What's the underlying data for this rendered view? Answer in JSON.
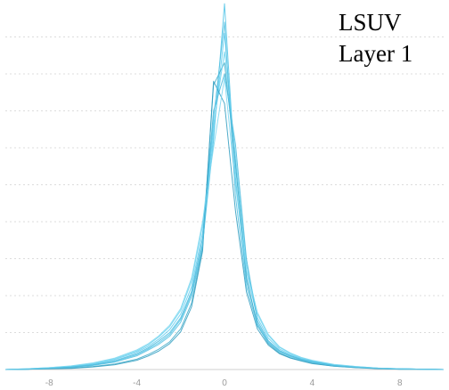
{
  "chart_data": {
    "type": "line",
    "title": "",
    "xlabel": "",
    "ylabel": "",
    "annotation_lines": [
      "LSUV",
      "Layer 1"
    ],
    "xlim": [
      -10,
      10
    ],
    "ylim": [
      0,
      1.0
    ],
    "x_ticks": [
      -8,
      -4,
      0,
      4,
      8
    ],
    "x_tick_labels": [
      "-8",
      "-4",
      "0",
      "4",
      "8"
    ],
    "y_gridlines": [
      0.1,
      0.2,
      0.3,
      0.4,
      0.5,
      0.6,
      0.7,
      0.8,
      0.9
    ],
    "grid": true,
    "legend": "none",
    "colors": [
      "#4fc3e6",
      "#5fcdf0",
      "#3faac8",
      "#6bd2ee",
      "#48b8dc",
      "#2f9cbf",
      "#7ad6f0",
      "#55c0e0"
    ],
    "x": [
      -10,
      -9,
      -8,
      -7,
      -6,
      -5,
      -4,
      -3.5,
      -3,
      -2.5,
      -2,
      -1.5,
      -1,
      -0.5,
      0,
      0.5,
      1,
      1.5,
      2,
      2.5,
      3,
      3.5,
      4,
      5,
      6,
      7,
      8,
      9,
      10
    ],
    "series": [
      {
        "values": [
          0.0,
          0.001,
          0.003,
          0.006,
          0.012,
          0.022,
          0.04,
          0.055,
          0.072,
          0.095,
          0.135,
          0.205,
          0.34,
          0.62,
          0.99,
          0.52,
          0.24,
          0.125,
          0.075,
          0.05,
          0.037,
          0.027,
          0.02,
          0.011,
          0.006,
          0.003,
          0.002,
          0.001,
          0.0
        ]
      },
      {
        "values": [
          0.0,
          0.001,
          0.004,
          0.008,
          0.015,
          0.027,
          0.047,
          0.062,
          0.082,
          0.108,
          0.15,
          0.225,
          0.37,
          0.64,
          0.91,
          0.55,
          0.265,
          0.14,
          0.085,
          0.056,
          0.041,
          0.03,
          0.022,
          0.012,
          0.007,
          0.004,
          0.002,
          0.001,
          0.0
        ]
      },
      {
        "values": [
          0.0,
          0.001,
          0.002,
          0.004,
          0.008,
          0.015,
          0.028,
          0.04,
          0.055,
          0.075,
          0.11,
          0.18,
          0.33,
          0.77,
          0.83,
          0.56,
          0.25,
          0.12,
          0.07,
          0.045,
          0.032,
          0.024,
          0.017,
          0.009,
          0.005,
          0.003,
          0.001,
          0.001,
          0.0
        ]
      },
      {
        "values": [
          0.0,
          0.002,
          0.005,
          0.009,
          0.016,
          0.029,
          0.05,
          0.066,
          0.088,
          0.116,
          0.16,
          0.24,
          0.39,
          0.66,
          0.86,
          0.58,
          0.285,
          0.15,
          0.092,
          0.06,
          0.044,
          0.032,
          0.024,
          0.013,
          0.008,
          0.004,
          0.002,
          0.001,
          0.0
        ]
      },
      {
        "values": [
          0.0,
          0.001,
          0.003,
          0.007,
          0.013,
          0.024,
          0.043,
          0.058,
          0.077,
          0.1,
          0.14,
          0.212,
          0.355,
          0.7,
          0.8,
          0.61,
          0.3,
          0.132,
          0.078,
          0.052,
          0.038,
          0.028,
          0.021,
          0.011,
          0.006,
          0.003,
          0.002,
          0.001,
          0.0
        ]
      },
      {
        "values": [
          0.0,
          0.001,
          0.002,
          0.003,
          0.007,
          0.013,
          0.025,
          0.036,
          0.05,
          0.07,
          0.102,
          0.17,
          0.32,
          0.78,
          0.72,
          0.43,
          0.21,
          0.11,
          0.066,
          0.043,
          0.031,
          0.023,
          0.016,
          0.009,
          0.005,
          0.002,
          0.001,
          0.001,
          0.0
        ]
      },
      {
        "values": [
          0.0,
          0.002,
          0.005,
          0.01,
          0.018,
          0.031,
          0.053,
          0.069,
          0.091,
          0.12,
          0.165,
          0.248,
          0.4,
          0.6,
          0.79,
          0.5,
          0.27,
          0.155,
          0.095,
          0.062,
          0.045,
          0.033,
          0.025,
          0.014,
          0.008,
          0.004,
          0.002,
          0.001,
          0.0
        ]
      },
      {
        "values": [
          0.0,
          0.001,
          0.003,
          0.006,
          0.011,
          0.02,
          0.037,
          0.052,
          0.068,
          0.09,
          0.128,
          0.198,
          0.335,
          0.68,
          0.94,
          0.47,
          0.225,
          0.118,
          0.072,
          0.048,
          0.035,
          0.026,
          0.019,
          0.01,
          0.006,
          0.003,
          0.001,
          0.001,
          0.0
        ]
      }
    ]
  }
}
